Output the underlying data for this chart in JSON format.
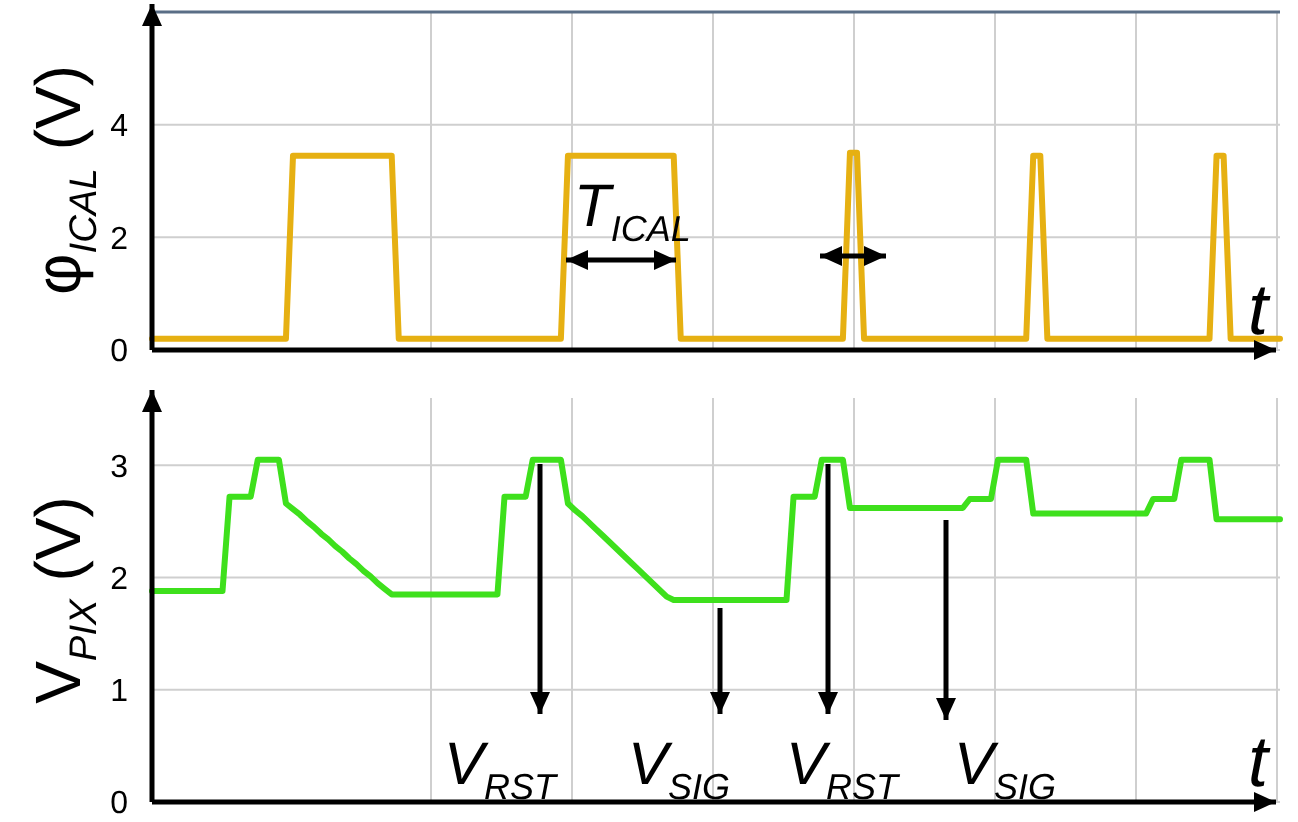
{
  "chart_data": [
    {
      "type": "line",
      "ylabel": "φ$_{ICAL}$ (V)",
      "xlabel": "t",
      "annotations": [
        "T$_{ICAL}$"
      ],
      "categories": [
        null,
        null,
        null,
        null,
        null,
        null,
        null,
        null,
        null,
        null,
        null,
        null,
        null,
        null,
        null,
        null,
        null,
        null,
        null,
        null,
        null,
        null,
        null,
        null,
        null,
        null,
        null,
        null,
        null,
        null,
        null,
        null,
        null,
        null,
        null,
        null,
        null,
        null,
        null,
        null,
        null,
        null,
        null,
        null,
        null,
        null,
        null,
        null,
        null,
        null,
        null,
        null,
        null,
        null,
        null,
        null,
        null,
        null,
        null,
        null,
        null,
        null,
        null,
        null,
        null,
        null,
        null,
        null,
        null,
        null,
        null,
        null,
        null,
        null,
        null,
        null,
        null,
        null,
        null,
        null,
        null,
        null,
        null,
        null,
        null,
        null,
        null,
        null,
        null,
        null,
        null,
        null,
        null,
        null,
        null,
        null,
        null,
        null,
        null,
        null,
        null,
        null,
        null,
        null,
        null,
        null,
        null,
        null,
        null,
        null,
        null,
        null,
        null,
        null,
        null,
        null,
        null,
        null,
        null,
        null,
        null,
        null,
        null,
        null,
        null,
        null,
        null,
        null,
        null,
        null,
        null,
        null,
        null,
        null,
        null,
        null,
        null,
        null,
        null,
        null,
        null,
        null,
        null,
        null,
        null,
        null,
        null,
        null,
        null,
        null,
        null,
        null,
        null,
        null,
        null,
        null,
        null,
        null,
        null,
        null,
        null
      ],
      "series": [
        {
          "color": "#e6b012",
          "values": [
            0.2,
            0.2,
            0.2,
            0.2,
            0.2,
            0.2,
            0.2,
            0.2,
            0.2,
            0.2,
            0.2,
            0.2,
            0.2,
            0.2,
            0.2,
            0.2,
            0.2,
            0.2,
            0.2,
            0.2,
            3.45,
            3.45,
            3.45,
            3.45,
            3.45,
            3.45,
            3.45,
            3.45,
            3.45,
            3.45,
            3.45,
            3.45,
            3.45,
            3.45,
            3.45,
            0.2,
            0.2,
            0.2,
            0.2,
            0.2,
            0.2,
            0.2,
            0.2,
            0.2,
            0.2,
            0.2,
            0.2,
            0.2,
            0.2,
            0.2,
            0.2,
            0.2,
            0.2,
            0.2,
            0.2,
            0.2,
            0.2,
            0.2,
            0.2,
            3.45,
            3.45,
            3.45,
            3.45,
            3.45,
            3.45,
            3.45,
            3.45,
            3.45,
            3.45,
            3.45,
            3.45,
            3.45,
            3.45,
            3.45,
            3.45,
            0.2,
            0.2,
            0.2,
            0.2,
            0.2,
            0.2,
            0.2,
            0.2,
            0.2,
            0.2,
            0.2,
            0.2,
            0.2,
            0.2,
            0.2,
            0.2,
            0.2,
            0.2,
            0.2,
            0.2,
            0.2,
            0.2,
            0.2,
            0.2,
            3.5,
            3.5,
            0.2,
            0.2,
            0.2,
            0.2,
            0.2,
            0.2,
            0.2,
            0.2,
            0.2,
            0.2,
            0.2,
            0.2,
            0.2,
            0.2,
            0.2,
            0.2,
            0.2,
            0.2,
            0.2,
            0.2,
            0.2,
            0.2,
            0.2,
            0.2,
            3.45,
            3.45,
            0.2,
            0.2,
            0.2,
            0.2,
            0.2,
            0.2,
            0.2,
            0.2,
            0.2,
            0.2,
            0.2,
            0.2,
            0.2,
            0.2,
            0.2,
            0.2,
            0.2,
            0.2,
            0.2,
            0.2,
            0.2,
            0.2,
            0.2,
            0.2,
            3.45,
            3.45,
            0.2,
            0.2,
            0.2,
            0.2,
            0.2,
            0.2,
            0.2,
            0.2
          ]
        }
      ],
      "ylim": [
        0,
        6
      ],
      "yticks": [
        0,
        2,
        4
      ],
      "grid": true,
      "tick_labels": "y"
    },
    {
      "type": "line",
      "ylabel": "V$_{PIX}$ (V)",
      "xlabel": "t",
      "annotations": [
        "V$_{RST}$",
        "V$_{SIG}$",
        "V$_{RST}$",
        "V$_{SIG}$"
      ],
      "categories": [
        null,
        null,
        null,
        null,
        null,
        null,
        null,
        null,
        null,
        null,
        null,
        null,
        null,
        null,
        null,
        null,
        null,
        null,
        null,
        null,
        null,
        null,
        null,
        null,
        null,
        null,
        null,
        null,
        null,
        null,
        null,
        null,
        null,
        null,
        null,
        null,
        null,
        null,
        null,
        null,
        null,
        null,
        null,
        null,
        null,
        null,
        null,
        null,
        null,
        null,
        null,
        null,
        null,
        null,
        null,
        null,
        null,
        null,
        null,
        null,
        null,
        null,
        null,
        null,
        null,
        null,
        null,
        null,
        null,
        null,
        null,
        null,
        null,
        null,
        null,
        null,
        null,
        null,
        null,
        null,
        null,
        null,
        null,
        null,
        null,
        null,
        null,
        null,
        null,
        null,
        null,
        null,
        null,
        null,
        null,
        null,
        null,
        null,
        null,
        null,
        null,
        null,
        null,
        null,
        null,
        null,
        null,
        null,
        null,
        null,
        null,
        null,
        null,
        null,
        null,
        null,
        null,
        null,
        null,
        null,
        null,
        null,
        null,
        null,
        null,
        null,
        null,
        null,
        null,
        null,
        null,
        null,
        null,
        null,
        null,
        null,
        null,
        null,
        null,
        null,
        null,
        null,
        null,
        null,
        null,
        null,
        null,
        null,
        null,
        null,
        null,
        null,
        null,
        null,
        null,
        null,
        null,
        null,
        null,
        null,
        null
      ],
      "series": [
        {
          "color": "#3ee01c",
          "values": [
            1.88,
            1.88,
            1.88,
            1.88,
            1.88,
            1.88,
            1.88,
            1.88,
            1.88,
            1.88,
            1.88,
            2.72,
            2.72,
            2.72,
            2.72,
            3.05,
            3.05,
            3.05,
            3.05,
            2.66,
            2.61,
            2.56,
            2.5,
            2.45,
            2.39,
            2.34,
            2.28,
            2.23,
            2.17,
            2.12,
            2.06,
            2.01,
            1.95,
            1.9,
            1.85,
            1.85,
            1.85,
            1.85,
            1.85,
            1.85,
            1.85,
            1.85,
            1.85,
            1.85,
            1.85,
            1.85,
            1.85,
            1.85,
            1.85,
            1.85,
            2.72,
            2.72,
            2.72,
            2.72,
            3.05,
            3.05,
            3.05,
            3.05,
            3.05,
            2.66,
            2.6,
            2.55,
            2.49,
            2.43,
            2.37,
            2.31,
            2.25,
            2.19,
            2.13,
            2.07,
            2.01,
            1.95,
            1.89,
            1.83,
            1.8,
            1.8,
            1.8,
            1.8,
            1.8,
            1.8,
            1.8,
            1.8,
            1.8,
            1.8,
            1.8,
            1.8,
            1.8,
            1.8,
            1.8,
            1.8,
            1.8,
            2.72,
            2.72,
            2.72,
            2.72,
            3.05,
            3.05,
            3.05,
            3.05,
            2.62,
            2.62,
            2.62,
            2.62,
            2.62,
            2.62,
            2.62,
            2.62,
            2.62,
            2.62,
            2.62,
            2.62,
            2.62,
            2.62,
            2.62,
            2.62,
            2.62,
            2.7,
            2.7,
            2.7,
            2.7,
            3.05,
            3.05,
            3.05,
            3.05,
            3.05,
            2.57,
            2.57,
            2.57,
            2.57,
            2.57,
            2.57,
            2.57,
            2.57,
            2.57,
            2.57,
            2.57,
            2.57,
            2.57,
            2.57,
            2.57,
            2.57,
            2.57,
            2.7,
            2.7,
            2.7,
            2.7,
            3.05,
            3.05,
            3.05,
            3.05,
            3.05,
            2.52,
            2.52,
            2.52,
            2.52,
            2.52,
            2.52,
            2.52,
            2.52,
            2.52,
            2.52
          ]
        }
      ],
      "ylim": [
        0,
        3.6
      ],
      "yticks": [
        0,
        1,
        2,
        3
      ],
      "grid": true,
      "tick_labels": "y"
    }
  ]
}
